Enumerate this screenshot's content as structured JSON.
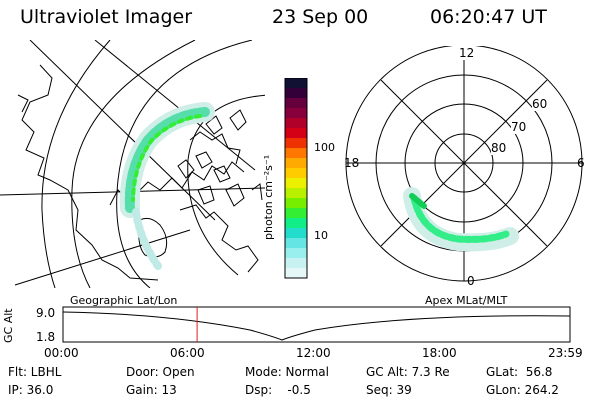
{
  "header": {
    "instrument": "Ultraviolet Imager",
    "date": "23 Sep 00",
    "time": "06:20:47 UT"
  },
  "colorbar": {
    "unit_label": "photon cm⁻²s⁻¹",
    "ticks": [
      "100",
      "10"
    ],
    "colors": [
      "#111133",
      "#33003a",
      "#66003d",
      "#88003b",
      "#b0002a",
      "#d40016",
      "#ee3300",
      "#ff7700",
      "#ffaa00",
      "#ffcc00",
      "#eaf000",
      "#b8f000",
      "#77ee00",
      "#33ee33",
      "#11ee88",
      "#22ddcc",
      "#66e5e5",
      "#99eeee",
      "#c8f2f2",
      "#e6f7f7"
    ]
  },
  "maps": {
    "left_title": "Geographic Lat/Lon",
    "right_title": "Apex MLat/MLT",
    "polar_hours": {
      "top": "12",
      "left": "18",
      "right": "6",
      "bottom": "0"
    },
    "polar_lats": [
      "60",
      "70",
      "80"
    ]
  },
  "timeline": {
    "ylabel": "GC Alt",
    "y_ticks": [
      "9.0",
      "1.8"
    ],
    "x_ticks": [
      "00:00",
      "06:00",
      "12:00",
      "18:00",
      "23:59"
    ],
    "marker_time_hours": 6.35
  },
  "info": {
    "flt": "Flt: LBHL",
    "ip": "IP: 36.0",
    "door": "Door: Open",
    "gain": "Gain: 13",
    "mode": "Mode: Normal",
    "dsp": "Dsp:    -0.5",
    "gc_alt": "GC Alt: 7.3 Re",
    "seq": "Seq: 39",
    "glat": "GLat:  56.8",
    "glon": "GLon: 264.2"
  }
}
